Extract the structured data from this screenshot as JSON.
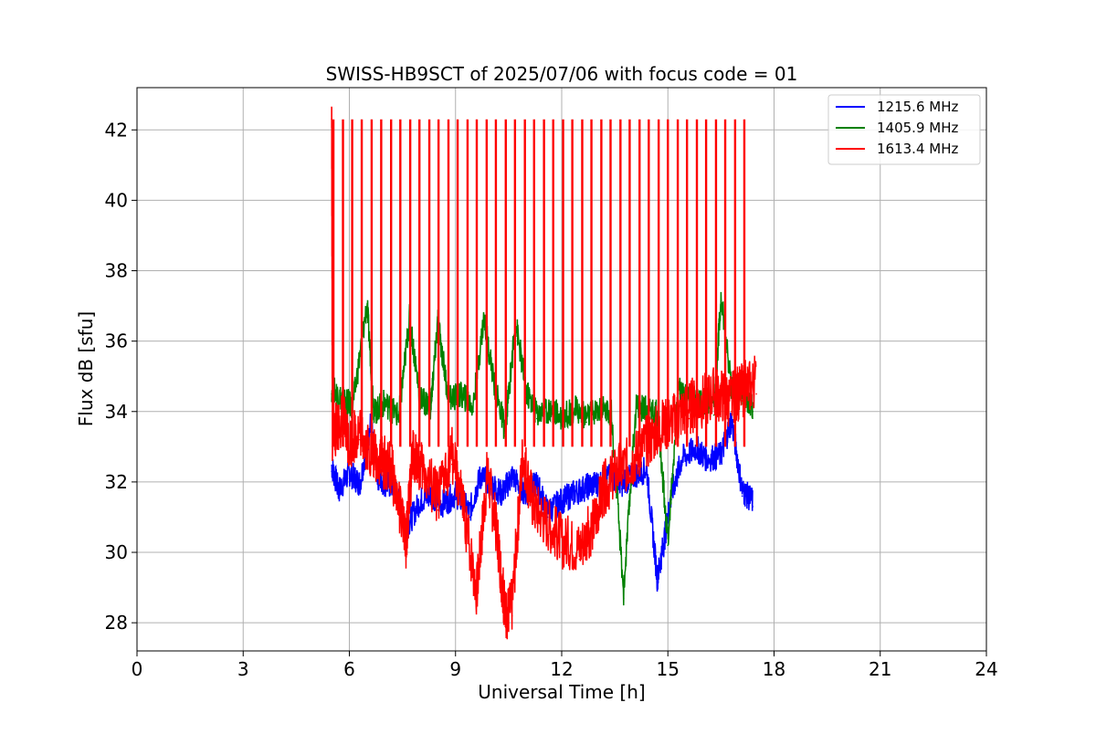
{
  "chart_data": {
    "type": "line",
    "title": "SWISS-HB9SCT of 2025/07/06 with focus code = 01",
    "xlabel": "Universal Time [h]",
    "ylabel": "Flux dB [sfu]",
    "xlim": [
      0,
      24
    ],
    "ylim": [
      27.2,
      43.2
    ],
    "x_ticks": [
      0,
      3,
      6,
      9,
      12,
      15,
      18,
      21,
      24
    ],
    "y_ticks": [
      28,
      30,
      32,
      34,
      36,
      38,
      40,
      42
    ],
    "grid": true,
    "legend_position": "top-right",
    "series": [
      {
        "name": "1215.6 MHz",
        "color": "#0000ff",
        "points": [
          [
            5.5,
            32.3
          ],
          [
            5.7,
            31.6
          ],
          [
            6.0,
            32.1
          ],
          [
            6.3,
            31.8
          ],
          [
            6.6,
            33.5
          ],
          [
            6.8,
            32.0
          ],
          [
            7.0,
            31.8
          ],
          [
            7.3,
            31.7
          ],
          [
            7.6,
            30.5
          ],
          [
            8.0,
            31.3
          ],
          [
            8.3,
            31.5
          ],
          [
            8.6,
            31.2
          ],
          [
            9.0,
            31.5
          ],
          [
            9.4,
            31.0
          ],
          [
            9.7,
            32.0
          ],
          [
            10.0,
            31.8
          ],
          [
            10.3,
            31.5
          ],
          [
            10.6,
            32.0
          ],
          [
            11.0,
            31.5
          ],
          [
            11.3,
            31.8
          ],
          [
            11.6,
            31.0
          ],
          [
            12.0,
            31.3
          ],
          [
            12.3,
            31.5
          ],
          [
            12.7,
            31.7
          ],
          [
            13.0,
            31.8
          ],
          [
            13.4,
            32.0
          ],
          [
            13.7,
            31.8
          ],
          [
            14.0,
            32.0
          ],
          [
            14.4,
            32.2
          ],
          [
            14.7,
            29.1
          ],
          [
            14.9,
            30.2
          ],
          [
            15.1,
            31.5
          ],
          [
            15.4,
            32.5
          ],
          [
            15.8,
            32.8
          ],
          [
            16.1,
            32.5
          ],
          [
            16.5,
            32.6
          ],
          [
            16.8,
            33.6
          ],
          [
            17.1,
            31.6
          ],
          [
            17.4,
            31.3
          ]
        ]
      },
      {
        "name": "1405.9 MHz",
        "color": "#008000",
        "points": [
          [
            5.5,
            34.5
          ],
          [
            5.8,
            34.2
          ],
          [
            6.1,
            34.0
          ],
          [
            6.5,
            36.9
          ],
          [
            6.7,
            33.8
          ],
          [
            7.0,
            34.1
          ],
          [
            7.4,
            33.7
          ],
          [
            7.7,
            36.5
          ],
          [
            8.0,
            34.2
          ],
          [
            8.3,
            34.0
          ],
          [
            8.5,
            36.4
          ],
          [
            8.8,
            34.2
          ],
          [
            9.2,
            34.3
          ],
          [
            9.5,
            34.0
          ],
          [
            9.8,
            36.5
          ],
          [
            10.1,
            34.6
          ],
          [
            10.4,
            33.3
          ],
          [
            10.7,
            36.4
          ],
          [
            11.0,
            34.4
          ],
          [
            11.3,
            33.8
          ],
          [
            11.7,
            33.9
          ],
          [
            12.0,
            33.7
          ],
          [
            12.4,
            33.9
          ],
          [
            12.7,
            33.7
          ],
          [
            13.1,
            33.9
          ],
          [
            13.4,
            33.8
          ],
          [
            13.75,
            28.7
          ],
          [
            14.1,
            34.0
          ],
          [
            14.4,
            33.9
          ],
          [
            14.7,
            33.8
          ],
          [
            15.0,
            30.2
          ],
          [
            15.3,
            34.5
          ],
          [
            15.7,
            34.2
          ],
          [
            16.0,
            34.1
          ],
          [
            16.3,
            33.9
          ],
          [
            16.5,
            37.1
          ],
          [
            16.8,
            34.5
          ],
          [
            17.1,
            34.4
          ],
          [
            17.4,
            34.0
          ]
        ]
      },
      {
        "name": "1613.4 MHz",
        "color": "#ff0000",
        "points": [
          [
            5.5,
            42.3
          ],
          [
            5.52,
            33.0
          ],
          [
            5.8,
            33.5
          ],
          [
            6.0,
            32.8
          ],
          [
            6.3,
            33.2
          ],
          [
            6.6,
            32.5
          ],
          [
            6.9,
            32.3
          ],
          [
            7.2,
            32.0
          ],
          [
            7.6,
            30.0
          ],
          [
            7.8,
            32.5
          ],
          [
            8.1,
            32.0
          ],
          [
            8.5,
            31.2
          ],
          [
            8.9,
            32.5
          ],
          [
            9.2,
            31.0
          ],
          [
            9.6,
            28.6
          ],
          [
            9.9,
            32.0
          ],
          [
            10.2,
            30.0
          ],
          [
            10.4,
            27.9
          ],
          [
            10.6,
            28.2
          ],
          [
            10.9,
            32.5
          ],
          [
            11.2,
            31.0
          ],
          [
            11.6,
            30.5
          ],
          [
            12.0,
            30.0
          ],
          [
            12.5,
            29.8
          ],
          [
            12.9,
            30.5
          ],
          [
            13.2,
            31.5
          ],
          [
            13.6,
            32.0
          ],
          [
            14.0,
            32.3
          ],
          [
            14.4,
            32.8
          ],
          [
            14.8,
            33.2
          ],
          [
            15.2,
            33.5
          ],
          [
            15.6,
            33.8
          ],
          [
            16.0,
            34.0
          ],
          [
            16.4,
            34.2
          ],
          [
            16.8,
            34.0
          ],
          [
            17.1,
            34.3
          ],
          [
            17.5,
            34.5
          ]
        ]
      }
    ],
    "spike_series": "1613.4 MHz",
    "spike_peak": 42.3,
    "spike_times": [
      5.55,
      5.82,
      6.08,
      6.35,
      6.63,
      6.9,
      7.18,
      7.44,
      7.72,
      7.98,
      8.26,
      8.52,
      8.8,
      9.06,
      9.34,
      9.6,
      9.88,
      10.14,
      10.42,
      10.68,
      10.96,
      11.22,
      11.5,
      11.76,
      12.04,
      12.3,
      12.58,
      12.84,
      13.12,
      13.38,
      13.66,
      13.92,
      14.2,
      14.46,
      14.74,
      15.0,
      15.28,
      15.54,
      15.82,
      16.08,
      16.36,
      16.62,
      16.9,
      17.16
    ]
  }
}
